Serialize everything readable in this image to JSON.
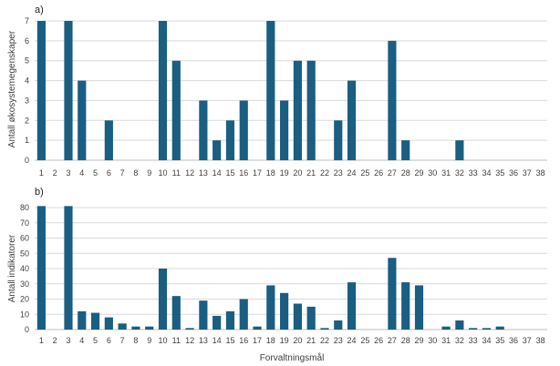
{
  "bar_color": "#1a5e82",
  "chart_data": [
    {
      "type": "bar",
      "panel_label": "a)",
      "title": "",
      "ylabel": "Antall økosystemegenskaper",
      "xlabel": "",
      "ylim": [
        0,
        7
      ],
      "yticks": [
        0,
        1,
        2,
        3,
        4,
        5,
        6,
        7
      ],
      "grid": true,
      "categories": [
        "1",
        "2",
        "3",
        "4",
        "5",
        "6",
        "7",
        "8",
        "9",
        "10",
        "11",
        "12",
        "13",
        "14",
        "15",
        "16",
        "17",
        "18",
        "19",
        "20",
        "21",
        "22",
        "23",
        "24",
        "25",
        "26",
        "27",
        "28",
        "29",
        "30",
        "31",
        "32",
        "33",
        "34",
        "35",
        "36",
        "37",
        "38"
      ],
      "values": [
        7,
        0,
        7,
        4,
        0,
        2,
        0,
        0,
        0,
        7,
        5,
        0,
        3,
        1,
        2,
        3,
        0,
        7,
        3,
        5,
        5,
        0,
        2,
        4,
        0,
        0,
        6,
        1,
        0,
        0,
        0,
        1,
        0,
        0,
        0,
        0,
        0,
        0
      ]
    },
    {
      "type": "bar",
      "panel_label": "b)",
      "title": "",
      "ylabel": "Antall indikatorer",
      "xlabel": "Forvaltningsmål",
      "ylim": [
        0,
        80
      ],
      "yticks": [
        0,
        10,
        20,
        30,
        40,
        50,
        60,
        70,
        80
      ],
      "grid": true,
      "categories": [
        "1",
        "2",
        "3",
        "4",
        "5",
        "6",
        "7",
        "8",
        "9",
        "10",
        "11",
        "12",
        "13",
        "14",
        "15",
        "16",
        "17",
        "18",
        "19",
        "20",
        "21",
        "22",
        "23",
        "24",
        "25",
        "26",
        "27",
        "28",
        "29",
        "30",
        "31",
        "32",
        "33",
        "34",
        "35",
        "36",
        "37",
        "38"
      ],
      "values": [
        81,
        0,
        81,
        12,
        11,
        8,
        4,
        2,
        2,
        40,
        22,
        1,
        19,
        9,
        12,
        20,
        2,
        29,
        24,
        17,
        15,
        1,
        6,
        31,
        0,
        0,
        47,
        31,
        29,
        0,
        2,
        6,
        1,
        1,
        2,
        0,
        0,
        0
      ]
    }
  ]
}
